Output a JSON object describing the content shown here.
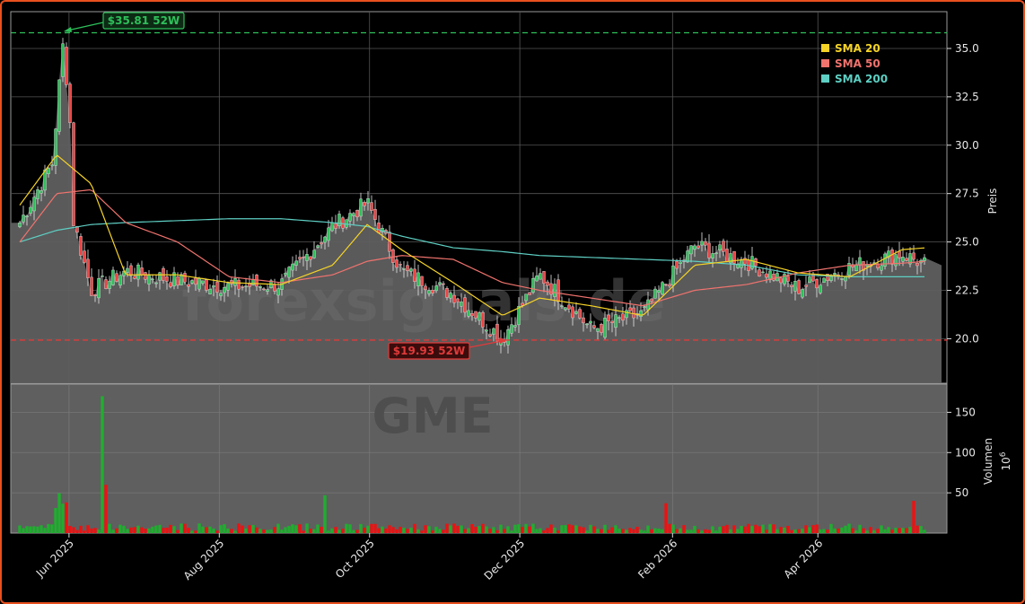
{
  "chart_data": {
    "type": "candlestick",
    "symbol_watermark": "GME",
    "brand_watermark": "forexsignals.de",
    "x_tick_labels": [
      "Jun 2025",
      "Aug 2025",
      "Oct 2025",
      "Dec 2025",
      "Feb 2026",
      "Apr 2026"
    ],
    "price_axis": {
      "label": "Preis",
      "ticks": [
        "20.0",
        "22.5",
        "25.0",
        "27.5",
        "30.0",
        "32.5",
        "35.0"
      ],
      "ylim": [
        17.7,
        36.9
      ]
    },
    "volume_axis": {
      "label": "Volumen",
      "exponent": "10",
      "exponent_power": "6",
      "ticks": [
        "50",
        "100",
        "150"
      ],
      "ylim": [
        0,
        185
      ]
    },
    "legend": {
      "position": "top-right",
      "items": [
        {
          "label": "SMA 20",
          "color": "#f5d327"
        },
        {
          "label": "SMA 50",
          "color": "#f0736e"
        },
        {
          "label": "SMA 200",
          "color": "#5ecfc3"
        }
      ]
    },
    "annotations": {
      "high": {
        "label": "$35.81 52W",
        "value": 35.81,
        "color": "#2ec05a"
      },
      "low": {
        "label": "$19.93 52W",
        "value": 19.93,
        "color": "#e03a3a"
      }
    },
    "colors": {
      "up": "#1fae2f",
      "down": "#ee1111",
      "area": "#5f5f5f",
      "grid": "#777777"
    },
    "series_keys": {
      "dates": [
        "2025-05-12",
        "2025-05-27",
        "2025-06-10",
        "2025-06-24",
        "2025-07-15",
        "2025-08-05",
        "2025-08-26",
        "2025-09-16",
        "2025-09-30",
        "2025-10-14",
        "2025-11-04",
        "2025-11-24",
        "2025-12-09",
        "2025-12-30",
        "2026-01-20",
        "2026-02-10",
        "2026-03-03",
        "2026-03-24",
        "2026-04-14",
        "2026-05-05",
        "2026-05-15"
      ],
      "close": [
        26.0,
        29.5,
        22.5,
        23.5,
        23.0,
        22.7,
        22.8,
        25.8,
        27.0,
        23.5,
        22.3,
        20.0,
        23.3,
        20.5,
        21.3,
        24.8,
        24.0,
        22.6,
        23.7,
        24.4,
        23.8
      ],
      "sma20": [
        26.9,
        29.5,
        28.0,
        23.3,
        23.3,
        22.9,
        22.8,
        23.8,
        25.9,
        24.6,
        22.9,
        21.2,
        22.1,
        21.7,
        21.2,
        23.8,
        24.1,
        23.4,
        23.2,
        24.6,
        24.7
      ],
      "sma50": [
        25.0,
        27.5,
        27.7,
        26.0,
        25.0,
        23.2,
        22.9,
        23.3,
        24.0,
        24.3,
        24.1,
        22.9,
        22.5,
        22.1,
        21.7,
        22.5,
        22.8,
        23.4,
        23.8,
        23.9,
        24.0
      ],
      "sma200": [
        25.0,
        25.6,
        25.9,
        26.0,
        26.1,
        26.2,
        26.2,
        26.0,
        25.8,
        25.3,
        24.7,
        24.5,
        24.3,
        24.2,
        24.1,
        24.0,
        23.8,
        23.3,
        23.2,
        23.2,
        23.2
      ]
    }
  }
}
